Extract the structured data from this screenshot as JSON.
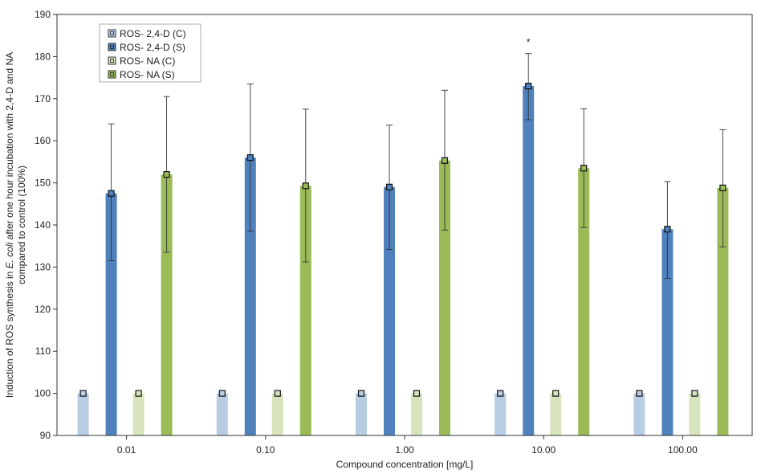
{
  "chart_data": {
    "type": "bar",
    "xlabel": "Compound concentration [mg/L]",
    "ylabel_line1_prefix": "Induction of ROS synthesis in ",
    "ylabel_line1_italic": "E. coli",
    "ylabel_line1_suffix": " after one hour incubation with 2,4-D and NA",
    "ylabel_line2": "compared to control (100%)",
    "categories": [
      "0.01",
      "0.10",
      "1.00",
      "10.00",
      "100.00"
    ],
    "ylim": [
      90,
      190
    ],
    "yticks": [
      "90",
      "100",
      "110",
      "120",
      "130",
      "140",
      "150",
      "160",
      "170",
      "180",
      "190"
    ],
    "grid": false,
    "legend_position": "top-left",
    "series": [
      {
        "name": "ROS- 2,4-D (C)",
        "color": "#b8cce4",
        "values": [
          100,
          100,
          100,
          100,
          100
        ],
        "err_low": [
          null,
          null,
          null,
          null,
          null
        ],
        "err_high": [
          null,
          null,
          null,
          null,
          null
        ]
      },
      {
        "name": "ROS- 2,4-D (S)",
        "color": "#4f81bd",
        "values": [
          147.5,
          156,
          149,
          173,
          139
        ],
        "err_low": [
          131.5,
          138.5,
          134.2,
          165,
          127.3
        ],
        "err_high": [
          164,
          173.5,
          163.7,
          180.7,
          150.3
        ]
      },
      {
        "name": "ROS- NA (C)",
        "color": "#d7e4bd",
        "values": [
          100,
          100,
          100,
          100,
          100
        ],
        "err_low": [
          null,
          null,
          null,
          null,
          null
        ],
        "err_high": [
          null,
          null,
          null,
          null,
          null
        ]
      },
      {
        "name": "ROS- NA (S)",
        "color": "#9bbb59",
        "values": [
          152,
          149.3,
          155.3,
          153.5,
          148.8
        ],
        "err_low": [
          133.5,
          131.2,
          138.8,
          139.4,
          134.8
        ],
        "err_high": [
          170.5,
          167.5,
          172,
          167.6,
          162.6
        ]
      }
    ],
    "annotations": [
      {
        "text": "*",
        "category": "10.00",
        "series": "ROS- 2,4-D (S)"
      }
    ]
  }
}
